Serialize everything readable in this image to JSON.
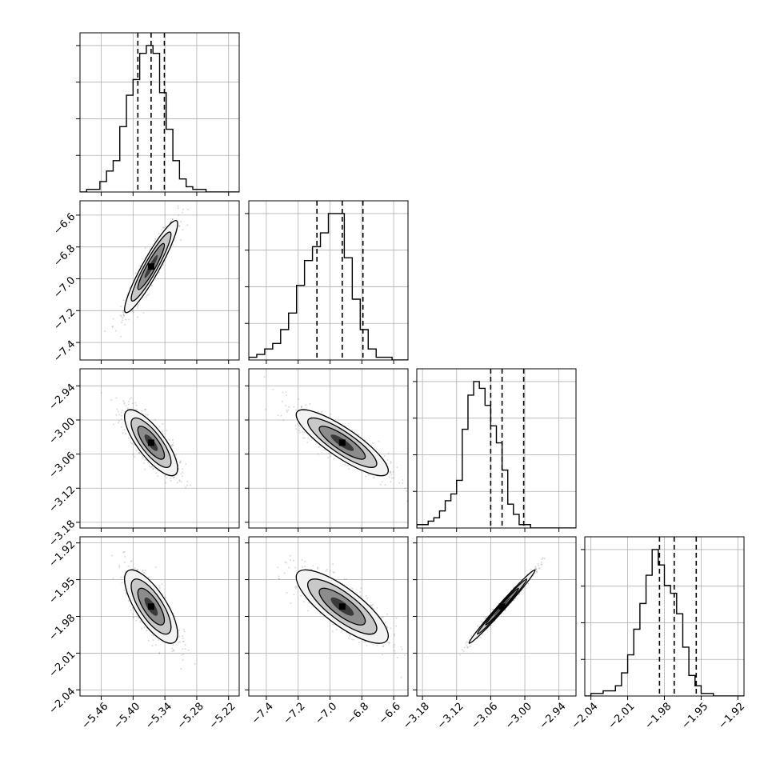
{
  "chart_data": {
    "type": "corner",
    "grid": true,
    "colors": {
      "ink": "#000000",
      "grid": "#b0b0b0",
      "sample": "#555555",
      "contour": "#000000"
    },
    "parameters": [
      {
        "median": -5.366,
        "q16": -5.391,
        "q84": -5.341,
        "range": [
          -5.5,
          -5.2
        ],
        "ticks": [
          -5.46,
          -5.4,
          -5.34,
          -5.28,
          -5.22
        ],
        "tick_labels": [
          "−5.46",
          "−5.40",
          "−5.34",
          "−5.28",
          "−5.22"
        ],
        "histogram": {
          "edges_start": -5.5,
          "bin_width": 0.0125,
          "counts": [
            0,
            1,
            1,
            4,
            8,
            12,
            25,
            37,
            43,
            53,
            56,
            53,
            38,
            24,
            12,
            5,
            2,
            1,
            1,
            0,
            0,
            0,
            0,
            0
          ]
        }
      },
      {
        "median": -6.923,
        "q16": -7.082,
        "q84": -6.793,
        "range": [
          -7.51,
          -6.51
        ],
        "ticks": [
          -7.4,
          -7.2,
          -7.0,
          -6.8,
          -6.6
        ],
        "tick_labels": [
          "−7.4",
          "−7.2",
          "−7.0",
          "−6.8",
          "−6.6"
        ],
        "histogram": {
          "edges_start": -7.51,
          "bin_width": 0.05,
          "counts": [
            1,
            2,
            4,
            6,
            11,
            17,
            27,
            36,
            41,
            46,
            53,
            53,
            37,
            22,
            11,
            4,
            1,
            1,
            0,
            0
          ]
        }
      },
      {
        "median": -3.04,
        "q16": -3.06,
        "q84": -3.002,
        "range": [
          -3.19,
          -2.91
        ],
        "ticks": [
          -3.18,
          -3.12,
          -3.06,
          -3.0,
          -2.94
        ],
        "tick_labels": [
          "−3.18",
          "−3.12",
          "−3.06",
          "−3.00",
          "−2.94"
        ],
        "histogram": {
          "edges_start": -3.19,
          "bin_width": 0.01,
          "counts": [
            1,
            1,
            2,
            3,
            5,
            8,
            10,
            14,
            29,
            39,
            43,
            41,
            36,
            30,
            25,
            17,
            7,
            4,
            1,
            1,
            0,
            0,
            0,
            0,
            0,
            0,
            0,
            0
          ]
        }
      },
      {
        "median": -1.972,
        "q16": -1.984,
        "q84": -1.954,
        "range": [
          -2.045,
          -1.915
        ],
        "ticks": [
          -2.04,
          -2.01,
          -1.98,
          -1.95,
          -1.92
        ],
        "tick_labels": [
          "−2.04",
          "−2.01",
          "−1.98",
          "−1.95",
          "−1.92"
        ],
        "histogram": {
          "edges_start": -2.045,
          "bin_width": 0.005,
          "counts": [
            0,
            1,
            1,
            2,
            2,
            4,
            9,
            16,
            26,
            36,
            47,
            57,
            51,
            43,
            40,
            32,
            19,
            8,
            4,
            1,
            1,
            0,
            0,
            0,
            0,
            0
          ]
        }
      }
    ],
    "correlations": [
      [
        1.0,
        0.93,
        -0.78,
        -0.74
      ],
      [
        0.93,
        1.0,
        -0.85,
        -0.8
      ],
      [
        -0.78,
        -0.85,
        1.0,
        0.99
      ],
      [
        -0.74,
        -0.8,
        0.99,
        1.0
      ]
    ]
  }
}
